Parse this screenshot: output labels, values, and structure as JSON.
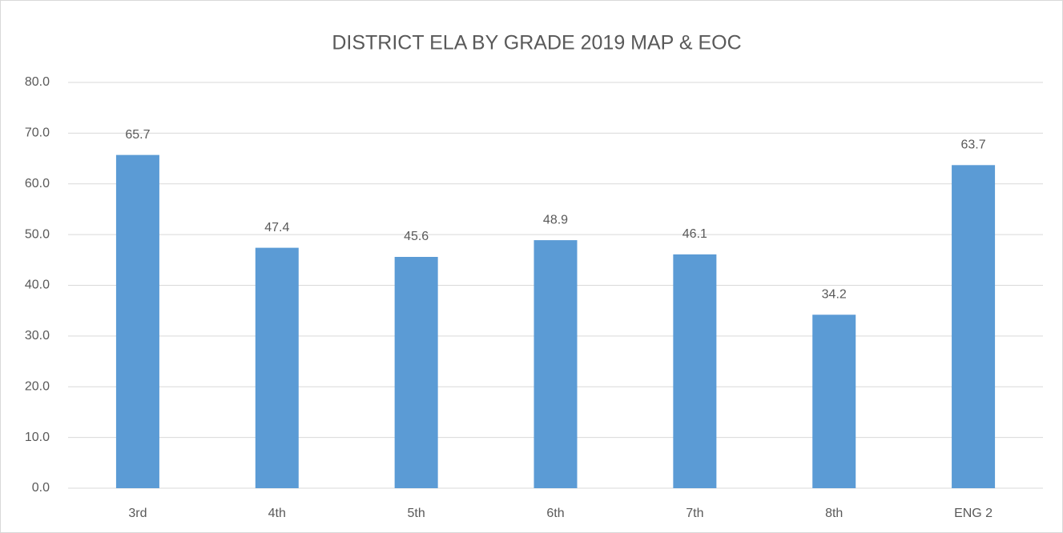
{
  "chart_data": {
    "type": "bar",
    "title": "DISTRICT ELA BY GRADE 2019 MAP & EOC",
    "categories": [
      "3rd",
      "4th",
      "5th",
      "6th",
      "7th",
      "8th",
      "ENG 2"
    ],
    "values": [
      65.7,
      47.4,
      45.6,
      48.9,
      46.1,
      34.2,
      63.7
    ],
    "color": "#5b9bd5",
    "ylim": [
      0,
      80
    ],
    "yticks": [
      {
        "value": 0,
        "label": "0.0"
      },
      {
        "value": 10,
        "label": "10.0"
      },
      {
        "value": 20,
        "label": "20.0"
      },
      {
        "value": 30,
        "label": "30.0"
      },
      {
        "value": 40,
        "label": "40.0"
      },
      {
        "value": 50,
        "label": "50.0"
      },
      {
        "value": 60,
        "label": "60.0"
      },
      {
        "value": 70,
        "label": "70.0"
      },
      {
        "value": 80,
        "label": "80.0"
      }
    ],
    "grid": true
  }
}
